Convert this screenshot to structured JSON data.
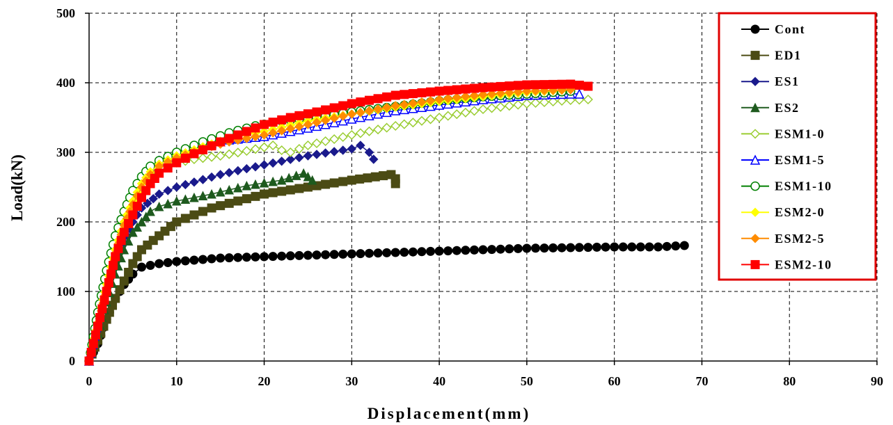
{
  "chart_data": {
    "type": "line",
    "xlabel": "Displacement(mm)",
    "ylabel": "Load(kN)",
    "xlim": [
      0,
      90
    ],
    "ylim": [
      0,
      500
    ],
    "xticks": [
      0,
      10,
      20,
      30,
      40,
      50,
      60,
      70,
      80,
      90
    ],
    "yticks": [
      0,
      100,
      200,
      300,
      400,
      500
    ],
    "grid": true,
    "legend_position": "right",
    "legend_border_color": "#E00000",
    "series": [
      {
        "name": "Cont",
        "color": "#000000",
        "marker": "circle",
        "points": [
          [
            0,
            0
          ],
          [
            1,
            25
          ],
          [
            2,
            60
          ],
          [
            3,
            90
          ],
          [
            4,
            110
          ],
          [
            5,
            125
          ],
          [
            6,
            135
          ],
          [
            8,
            140
          ],
          [
            10,
            143
          ],
          [
            15,
            148
          ],
          [
            20,
            150
          ],
          [
            25,
            152
          ],
          [
            30,
            154
          ],
          [
            35,
            156
          ],
          [
            40,
            158
          ],
          [
            45,
            160
          ],
          [
            50,
            162
          ],
          [
            55,
            163
          ],
          [
            60,
            164
          ],
          [
            65,
            164
          ],
          [
            68,
            166
          ]
        ]
      },
      {
        "name": "ED1",
        "color": "#4B4B14",
        "marker": "square",
        "points": [
          [
            0,
            0
          ],
          [
            1,
            30
          ],
          [
            2,
            60
          ],
          [
            3,
            90
          ],
          [
            4,
            115
          ],
          [
            5,
            140
          ],
          [
            6,
            160
          ],
          [
            8,
            180
          ],
          [
            10,
            200
          ],
          [
            12,
            210
          ],
          [
            14,
            220
          ],
          [
            17,
            230
          ],
          [
            20,
            240
          ],
          [
            25,
            250
          ],
          [
            30,
            260
          ],
          [
            34.5,
            268
          ],
          [
            35,
            262
          ],
          [
            35,
            255
          ]
        ]
      },
      {
        "name": "ES1",
        "color": "#1A1A8C",
        "marker": "diamond",
        "points": [
          [
            0,
            0
          ],
          [
            1,
            50
          ],
          [
            2,
            100
          ],
          [
            3,
            140
          ],
          [
            4,
            170
          ],
          [
            5,
            200
          ],
          [
            6,
            220
          ],
          [
            8,
            240
          ],
          [
            10,
            250
          ],
          [
            15,
            268
          ],
          [
            20,
            282
          ],
          [
            25,
            295
          ],
          [
            30,
            305
          ],
          [
            31,
            310
          ],
          [
            32,
            300
          ],
          [
            32.5,
            290
          ]
        ]
      },
      {
        "name": "ES2",
        "color": "#1E5A1E",
        "marker": "triangle",
        "points": [
          [
            0,
            0
          ],
          [
            1,
            40
          ],
          [
            2,
            85
          ],
          [
            3,
            125
          ],
          [
            4,
            160
          ],
          [
            5,
            185
          ],
          [
            6,
            200
          ],
          [
            7,
            215
          ],
          [
            8,
            222
          ],
          [
            10,
            230
          ],
          [
            14,
            240
          ],
          [
            18,
            252
          ],
          [
            22,
            260
          ],
          [
            24.5,
            270
          ],
          [
            25,
            265
          ],
          [
            25.5,
            260
          ]
        ]
      },
      {
        "name": "ESM1-0",
        "color": "#9ACD32",
        "marker": "open-diamond",
        "points": [
          [
            0,
            0
          ],
          [
            1,
            55
          ],
          [
            2,
            110
          ],
          [
            3,
            160
          ],
          [
            4,
            200
          ],
          [
            5,
            230
          ],
          [
            6,
            255
          ],
          [
            7,
            270
          ],
          [
            8,
            280
          ],
          [
            10,
            285
          ],
          [
            12,
            290
          ],
          [
            15,
            295
          ],
          [
            18,
            302
          ],
          [
            21,
            310
          ],
          [
            22,
            303
          ],
          [
            23,
            300
          ],
          [
            25,
            310
          ],
          [
            30,
            325
          ],
          [
            35,
            338
          ],
          [
            40,
            350
          ],
          [
            45,
            362
          ],
          [
            50,
            370
          ],
          [
            55,
            375
          ],
          [
            57,
            376
          ]
        ]
      },
      {
        "name": "ESM1-5",
        "color": "#0000FF",
        "marker": "open-triangle",
        "points": [
          [
            0,
            0
          ],
          [
            1,
            60
          ],
          [
            2,
            120
          ],
          [
            3,
            170
          ],
          [
            4,
            210
          ],
          [
            5,
            240
          ],
          [
            6,
            262
          ],
          [
            7,
            278
          ],
          [
            8,
            288
          ],
          [
            10,
            298
          ],
          [
            13,
            310
          ],
          [
            16,
            318
          ],
          [
            20,
            323
          ],
          [
            25,
            335
          ],
          [
            30,
            348
          ],
          [
            35,
            360
          ],
          [
            40,
            368
          ],
          [
            45,
            376
          ],
          [
            50,
            382
          ],
          [
            55,
            384
          ],
          [
            56,
            384
          ]
        ]
      },
      {
        "name": "ESM1-10",
        "color": "#008000",
        "marker": "open-circle",
        "points": [
          [
            0,
            0
          ],
          [
            1,
            70
          ],
          [
            2,
            130
          ],
          [
            3,
            180
          ],
          [
            4,
            215
          ],
          [
            5,
            245
          ],
          [
            6,
            265
          ],
          [
            7,
            280
          ],
          [
            8,
            288
          ],
          [
            10,
            300
          ],
          [
            13,
            315
          ],
          [
            16,
            328
          ],
          [
            19,
            338
          ],
          [
            22,
            345
          ],
          [
            26,
            350
          ],
          [
            30,
            358
          ],
          [
            35,
            366
          ],
          [
            40,
            374
          ],
          [
            45,
            380
          ],
          [
            50,
            384
          ],
          [
            55,
            388
          ]
        ]
      },
      {
        "name": "ESM2-0",
        "color": "#FFFF00",
        "marker": "diamond",
        "points": [
          [
            0,
            0
          ],
          [
            1,
            55
          ],
          [
            2,
            110
          ],
          [
            3,
            160
          ],
          [
            4,
            200
          ],
          [
            5,
            230
          ],
          [
            6,
            255
          ],
          [
            7,
            272
          ],
          [
            8,
            283
          ],
          [
            10,
            295
          ],
          [
            13,
            308
          ],
          [
            16,
            320
          ],
          [
            20,
            330
          ],
          [
            25,
            345
          ],
          [
            30,
            355
          ],
          [
            35,
            365
          ],
          [
            40,
            373
          ],
          [
            45,
            380
          ],
          [
            50,
            386
          ],
          [
            55,
            390
          ]
        ]
      },
      {
        "name": "ESM2-5",
        "color": "#FF8C00",
        "marker": "diamond",
        "points": [
          [
            0,
            0
          ],
          [
            1,
            50
          ],
          [
            2,
            105
          ],
          [
            3,
            155
          ],
          [
            4,
            195
          ],
          [
            5,
            225
          ],
          [
            6,
            250
          ],
          [
            7,
            268
          ],
          [
            8,
            280
          ],
          [
            10,
            292
          ],
          [
            13,
            305
          ],
          [
            16,
            315
          ],
          [
            20,
            325
          ],
          [
            25,
            340
          ],
          [
            30,
            355
          ],
          [
            35,
            367
          ],
          [
            40,
            376
          ],
          [
            45,
            383
          ],
          [
            50,
            388
          ],
          [
            55,
            390
          ]
        ]
      },
      {
        "name": "ESM2-10",
        "color": "#FF0000",
        "marker": "square",
        "points": [
          [
            0,
            0
          ],
          [
            1,
            50
          ],
          [
            2,
            100
          ],
          [
            3,
            150
          ],
          [
            4,
            185
          ],
          [
            5,
            210
          ],
          [
            6,
            235
          ],
          [
            7,
            255
          ],
          [
            8,
            270
          ],
          [
            10,
            285
          ],
          [
            12,
            298
          ],
          [
            15,
            315
          ],
          [
            18,
            330
          ],
          [
            20,
            340
          ],
          [
            23,
            350
          ],
          [
            26,
            358
          ],
          [
            30,
            370
          ],
          [
            35,
            382
          ],
          [
            40,
            388
          ],
          [
            45,
            393
          ],
          [
            50,
            397
          ],
          [
            55,
            398
          ],
          [
            57,
            395
          ]
        ]
      }
    ]
  }
}
